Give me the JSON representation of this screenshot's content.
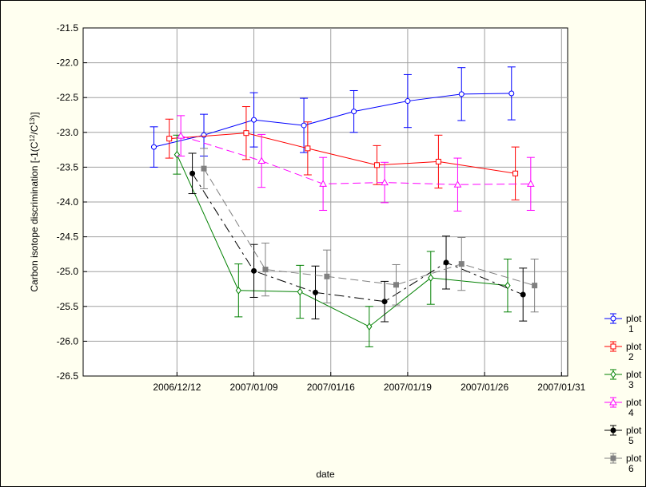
{
  "chart_data": {
    "type": "line",
    "title": "",
    "xlabel": "date",
    "ylabel": "Carbon isotope discrimination [-1(C12/C13)]",
    "ylabel_parts": [
      "Carbon isotope discrimination [-1(C",
      "12",
      "/C",
      "13",
      ")]"
    ],
    "ylim": [
      -26.5,
      -21.5
    ],
    "y_ticks": [
      "-21.5",
      "-22.0",
      "-22.5",
      "-23.0",
      "-23.5",
      "-24.0",
      "-24.5",
      "-25.0",
      "-25.5",
      "-26.0",
      "-26.5"
    ],
    "categories": [
      "2006/12/12",
      "2007/01/09",
      "2007/01/16",
      "2007/01/19",
      "2007/01/26",
      "2007/01/31"
    ],
    "grid": true,
    "legend_position": "right",
    "series": [
      {
        "name": "plot 1",
        "name_lines": [
          "plot",
          "1"
        ],
        "color": "#0000ff",
        "marker": "circle-open",
        "dash": "solid",
        "x": [
          0.2,
          0.85,
          1.5,
          2.15,
          2.8,
          3.5,
          4.2,
          4.85
        ],
        "y": [
          -23.21,
          -23.04,
          -22.82,
          -22.9,
          -22.7,
          -22.55,
          -22.45,
          -22.44
        ],
        "err": [
          0.29,
          0.3,
          0.39,
          0.39,
          0.3,
          0.38,
          0.38,
          0.38
        ]
      },
      {
        "name": "plot 2",
        "name_lines": [
          "plot",
          "2"
        ],
        "color": "#ff0000",
        "marker": "square-open",
        "dash": "solid",
        "x": [
          0.4,
          1.4,
          2.2,
          3.1,
          3.9,
          4.9
        ],
        "y": [
          -23.09,
          -23.01,
          -23.23,
          -23.47,
          -23.42,
          -23.59
        ],
        "err": [
          0.28,
          0.38,
          0.38,
          0.28,
          0.38,
          0.38
        ]
      },
      {
        "name": "plot 3",
        "name_lines": [
          "plot",
          "3"
        ],
        "color": "#008000",
        "marker": "diamond-open",
        "dash": "solid",
        "x": [
          0.5,
          1.3,
          2.1,
          3.0,
          3.8,
          4.8
        ],
        "y": [
          -23.32,
          -25.27,
          -25.29,
          -25.79,
          -25.09,
          -25.2
        ],
        "err": [
          0.28,
          0.38,
          0.38,
          0.29,
          0.38,
          0.38
        ]
      },
      {
        "name": "plot 4",
        "name_lines": [
          "plot",
          "4"
        ],
        "color": "#ff00ff",
        "marker": "triangle-open",
        "dash": "dashed",
        "x": [
          0.55,
          1.6,
          2.4,
          3.2,
          4.15,
          5.1
        ],
        "y": [
          -23.05,
          -23.41,
          -23.74,
          -23.72,
          -23.75,
          -23.74
        ],
        "err": [
          0.29,
          0.38,
          0.38,
          0.29,
          0.38,
          0.38
        ]
      },
      {
        "name": "plot 5",
        "name_lines": [
          "plot",
          "5"
        ],
        "color": "#000000",
        "marker": "circle-filled",
        "dash": "dashdot",
        "x": [
          0.7,
          1.5,
          2.3,
          3.2,
          4.0,
          5.0
        ],
        "y": [
          -23.59,
          -24.99,
          -25.3,
          -25.43,
          -24.87,
          -25.33
        ],
        "err": [
          0.29,
          0.38,
          0.38,
          0.29,
          0.38,
          0.38
        ]
      },
      {
        "name": "plot 6",
        "name_lines": [
          "plot",
          "6"
        ],
        "color": "#808080",
        "marker": "square-filled",
        "dash": "dashed",
        "x": [
          0.85,
          1.65,
          2.45,
          3.35,
          4.2,
          5.15
        ],
        "y": [
          -23.52,
          -24.97,
          -25.07,
          -25.19,
          -24.89,
          -25.2
        ],
        "err": [
          0.29,
          0.38,
          0.38,
          0.29,
          0.38,
          0.38
        ]
      }
    ]
  }
}
